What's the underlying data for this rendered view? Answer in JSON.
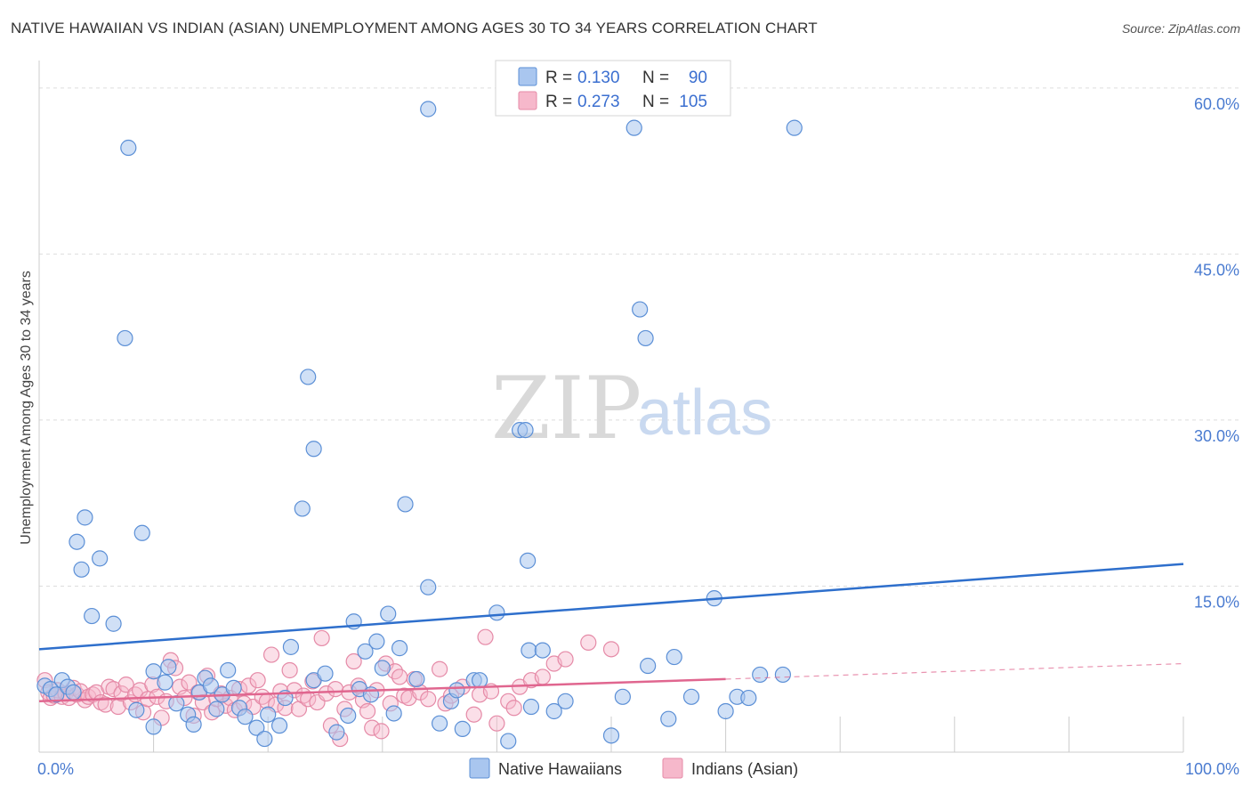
{
  "title": "NATIVE HAWAIIAN VS INDIAN (ASIAN) UNEMPLOYMENT AMONG AGES 30 TO 34 YEARS CORRELATION CHART",
  "source": "Source: ZipAtlas.com",
  "watermark": {
    "zip": "ZIP",
    "atlas": "atlas"
  },
  "colors": {
    "blue_fill": "#a9c6ef",
    "blue_stroke": "#5b8fd6",
    "blue_line": "#2e6fcc",
    "pink_fill": "#f6b8cb",
    "pink_stroke": "#e58aa7",
    "pink_line": "#e0668f",
    "grid": "#dddddd",
    "tick_text": "#4a7bd0"
  },
  "chart_data": {
    "type": "scatter",
    "title": "NATIVE HAWAIIAN VS INDIAN (ASIAN) UNEMPLOYMENT AMONG AGES 30 TO 34 YEARS CORRELATION CHART",
    "xlabel": "",
    "ylabel": "Unemployment Among Ages 30 to 34 years",
    "xlim": [
      0,
      100
    ],
    "ylim": [
      0,
      62
    ],
    "x_tick_labels": [
      "0.0%",
      "100.0%"
    ],
    "y_ticks": [
      15,
      30,
      45,
      60
    ],
    "y_tick_labels": [
      "15.0%",
      "30.0%",
      "45.0%",
      "60.0%"
    ],
    "grid": true,
    "legend": {
      "position": "top-center",
      "entries": [
        {
          "r_label": "R =",
          "r_value": "0.130",
          "n_label": "N =",
          "n_value": "90"
        },
        {
          "r_label": "R =",
          "r_value": "0.273",
          "n_label": "N =",
          "n_value": "105"
        }
      ]
    },
    "series": [
      {
        "name": "Native Hawaiians",
        "color": "#a9c6ef",
        "trend": {
          "x0": 0,
          "y0": 9.3,
          "x1": 100,
          "y1": 17.0
        },
        "points": [
          [
            0.5,
            6.0
          ],
          [
            1,
            5.7
          ],
          [
            1.5,
            5.2
          ],
          [
            2,
            6.5
          ],
          [
            2.5,
            5.9
          ],
          [
            3,
            5.4
          ],
          [
            3.3,
            19.0
          ],
          [
            3.7,
            16.5
          ],
          [
            4,
            21.2
          ],
          [
            4.6,
            12.3
          ],
          [
            5.3,
            17.5
          ],
          [
            6.5,
            11.6
          ],
          [
            7.5,
            37.4
          ],
          [
            7.8,
            54.6
          ],
          [
            8.5,
            3.8
          ],
          [
            9,
            19.8
          ],
          [
            10,
            2.3
          ],
          [
            10,
            7.3
          ],
          [
            11,
            6.3
          ],
          [
            11.3,
            7.7
          ],
          [
            12,
            4.4
          ],
          [
            13,
            3.4
          ],
          [
            13.5,
            2.5
          ],
          [
            14,
            5.4
          ],
          [
            14.5,
            6.7
          ],
          [
            15,
            6.0
          ],
          [
            15.5,
            3.9
          ],
          [
            16,
            5.2
          ],
          [
            16.5,
            7.4
          ],
          [
            17,
            5.8
          ],
          [
            17.5,
            4.0
          ],
          [
            18,
            3.2
          ],
          [
            19,
            2.2
          ],
          [
            19.7,
            1.2
          ],
          [
            20,
            3.4
          ],
          [
            21,
            2.4
          ],
          [
            21.5,
            4.9
          ],
          [
            22,
            9.5
          ],
          [
            23,
            22.0
          ],
          [
            23.5,
            33.9
          ],
          [
            24,
            27.4
          ],
          [
            24,
            6.5
          ],
          [
            25,
            7.1
          ],
          [
            26,
            1.8
          ],
          [
            27,
            3.3
          ],
          [
            27.5,
            11.8
          ],
          [
            28,
            5.7
          ],
          [
            28.5,
            9.1
          ],
          [
            29,
            5.2
          ],
          [
            29.5,
            10.0
          ],
          [
            30,
            7.6
          ],
          [
            30.5,
            12.5
          ],
          [
            31,
            3.5
          ],
          [
            31.5,
            9.4
          ],
          [
            32,
            22.4
          ],
          [
            33,
            6.6
          ],
          [
            34,
            14.9
          ],
          [
            34,
            58.1
          ],
          [
            35,
            2.6
          ],
          [
            36,
            4.6
          ],
          [
            36.5,
            5.6
          ],
          [
            37,
            2.1
          ],
          [
            38,
            6.5
          ],
          [
            38.5,
            6.5
          ],
          [
            40,
            12.6
          ],
          [
            41,
            1.0
          ],
          [
            42,
            29.1
          ],
          [
            42.5,
            29.1
          ],
          [
            42.7,
            17.3
          ],
          [
            42.8,
            9.2
          ],
          [
            43,
            4.1
          ],
          [
            44,
            9.2
          ],
          [
            45,
            3.7
          ],
          [
            46,
            4.6
          ],
          [
            50,
            1.5
          ],
          [
            51,
            5.0
          ],
          [
            52,
            56.4
          ],
          [
            52.5,
            40.0
          ],
          [
            53,
            37.4
          ],
          [
            53.2,
            7.8
          ],
          [
            55,
            3.0
          ],
          [
            55.5,
            8.6
          ],
          [
            57,
            5.0
          ],
          [
            59,
            13.9
          ],
          [
            60,
            3.7
          ],
          [
            61,
            5.0
          ],
          [
            62,
            4.9
          ],
          [
            63,
            7.0
          ],
          [
            65,
            7.0
          ],
          [
            66,
            56.4
          ]
        ]
      },
      {
        "name": "Indians (Asian)",
        "color": "#f6b8cb",
        "trend": {
          "x0": 0,
          "y0": 4.6,
          "x1": 60,
          "y1": 6.6,
          "dash_x1": 100,
          "dash_y1": 8.0
        },
        "points": [
          [
            0.5,
            6.5
          ],
          [
            0.8,
            5.4
          ],
          [
            1,
            4.9
          ],
          [
            1.3,
            5.1
          ],
          [
            1.6,
            5.6
          ],
          [
            2,
            5.0
          ],
          [
            2.3,
            5.3
          ],
          [
            2.6,
            4.9
          ],
          [
            3,
            5.8
          ],
          [
            3.3,
            5.2
          ],
          [
            3.6,
            5.5
          ],
          [
            4,
            4.7
          ],
          [
            4.3,
            5.0
          ],
          [
            4.7,
            5.2
          ],
          [
            5,
            5.4
          ],
          [
            5.4,
            4.5
          ],
          [
            5.8,
            4.3
          ],
          [
            6.1,
            5.9
          ],
          [
            6.5,
            5.7
          ],
          [
            6.9,
            4.1
          ],
          [
            7.2,
            5.3
          ],
          [
            7.6,
            6.1
          ],
          [
            8,
            4.5
          ],
          [
            8.4,
            5.2
          ],
          [
            8.8,
            5.6
          ],
          [
            9.1,
            3.6
          ],
          [
            9.5,
            4.8
          ],
          [
            9.9,
            6.1
          ],
          [
            10.3,
            5.0
          ],
          [
            10.7,
            3.1
          ],
          [
            11.1,
            4.6
          ],
          [
            11.5,
            8.3
          ],
          [
            11.9,
            7.6
          ],
          [
            12.3,
            5.9
          ],
          [
            12.7,
            4.9
          ],
          [
            13.1,
            6.3
          ],
          [
            13.5,
            3.3
          ],
          [
            13.9,
            5.4
          ],
          [
            14.3,
            4.5
          ],
          [
            14.7,
            6.9
          ],
          [
            15.1,
            3.6
          ],
          [
            15.5,
            4.8
          ],
          [
            15.9,
            5.3
          ],
          [
            16.3,
            4.2
          ],
          [
            16.7,
            4.9
          ],
          [
            17.1,
            3.8
          ],
          [
            17.5,
            5.7
          ],
          [
            17.9,
            4.4
          ],
          [
            18.3,
            6.0
          ],
          [
            18.7,
            4.1
          ],
          [
            19.1,
            6.5
          ],
          [
            19.5,
            5.0
          ],
          [
            19.9,
            4.6
          ],
          [
            20.3,
            8.8
          ],
          [
            20.7,
            4.3
          ],
          [
            21.1,
            5.5
          ],
          [
            21.5,
            4.0
          ],
          [
            21.9,
            7.4
          ],
          [
            22.3,
            5.6
          ],
          [
            22.7,
            3.9
          ],
          [
            23.1,
            5.1
          ],
          [
            23.5,
            4.8
          ],
          [
            23.9,
            6.4
          ],
          [
            24.3,
            4.5
          ],
          [
            24.7,
            10.3
          ],
          [
            25.1,
            5.3
          ],
          [
            25.5,
            2.4
          ],
          [
            25.9,
            5.7
          ],
          [
            26.3,
            1.2
          ],
          [
            26.7,
            3.9
          ],
          [
            27.1,
            5.4
          ],
          [
            27.5,
            8.2
          ],
          [
            27.9,
            6.0
          ],
          [
            28.3,
            4.7
          ],
          [
            28.7,
            3.7
          ],
          [
            29.1,
            2.2
          ],
          [
            29.5,
            5.6
          ],
          [
            29.9,
            1.9
          ],
          [
            30.3,
            8.0
          ],
          [
            30.7,
            4.4
          ],
          [
            31.1,
            7.3
          ],
          [
            31.5,
            6.8
          ],
          [
            31.9,
            5.1
          ],
          [
            32.3,
            4.9
          ],
          [
            32.8,
            6.6
          ],
          [
            33.3,
            5.4
          ],
          [
            34,
            4.8
          ],
          [
            35,
            7.5
          ],
          [
            35.5,
            4.4
          ],
          [
            36,
            5.1
          ],
          [
            37,
            5.9
          ],
          [
            38,
            3.4
          ],
          [
            38.5,
            5.2
          ],
          [
            39,
            10.4
          ],
          [
            39.5,
            5.5
          ],
          [
            40,
            2.6
          ],
          [
            41,
            4.6
          ],
          [
            41.5,
            4.0
          ],
          [
            42,
            5.9
          ],
          [
            43,
            6.5
          ],
          [
            44,
            6.8
          ],
          [
            45,
            8.0
          ],
          [
            46,
            8.4
          ],
          [
            48,
            9.9
          ],
          [
            50,
            9.3
          ]
        ]
      }
    ]
  },
  "bottom_legend": [
    {
      "label": "Native Hawaiians"
    },
    {
      "label": "Indians (Asian)"
    }
  ]
}
